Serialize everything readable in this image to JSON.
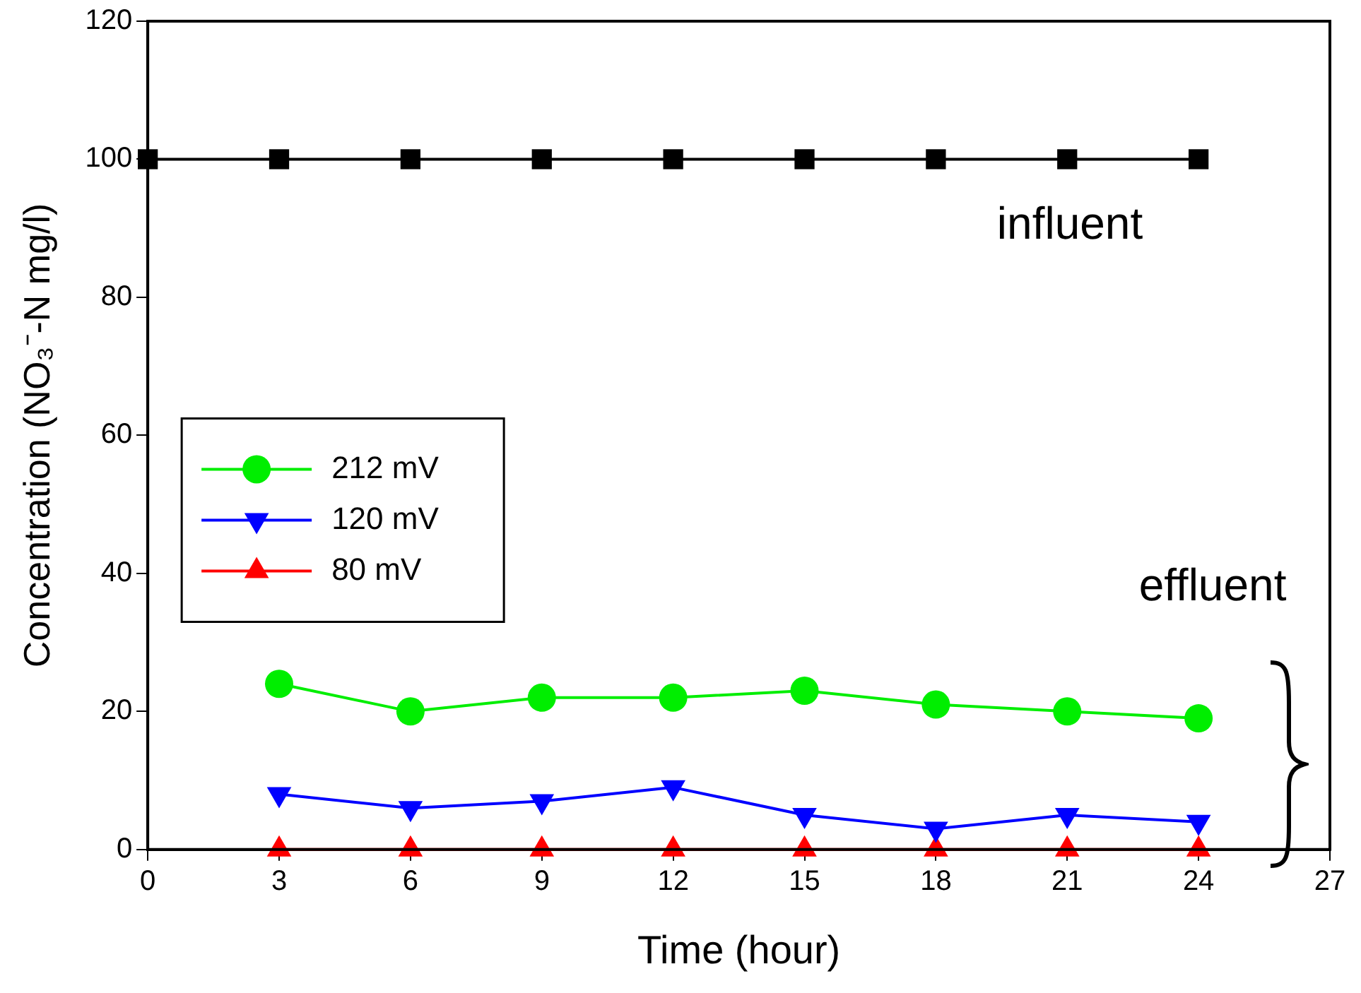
{
  "chart_data": {
    "type": "line",
    "xlabel": "Time (hour)",
    "ylabel": "Concentration (NO₃⁻-N mg/l)",
    "xlim": [
      0,
      27
    ],
    "xticks": [
      0,
      3,
      6,
      9,
      12,
      15,
      18,
      21,
      24,
      27
    ],
    "ylim": [
      0,
      120
    ],
    "yticks": [
      0,
      20,
      40,
      60,
      80,
      100,
      120
    ],
    "grid": false,
    "legend": "left",
    "line_style": "solid",
    "series": [
      {
        "color": "#000000",
        "marker": "square",
        "x": [
          0,
          3,
          6,
          9,
          12,
          15,
          18,
          21,
          24
        ],
        "values": [
          100,
          100,
          100,
          100,
          100,
          100,
          100,
          100,
          100
        ]
      },
      {
        "name": "212 mV",
        "color": "#00ee00",
        "marker": "circle",
        "x": [
          3,
          6,
          9,
          12,
          15,
          18,
          21,
          24
        ],
        "values": [
          24,
          20,
          22,
          22,
          23,
          21,
          20,
          19
        ]
      },
      {
        "name": "120 mV",
        "color": "#0000ff",
        "marker": "triangle_down",
        "x": [
          3,
          6,
          9,
          12,
          15,
          18,
          21,
          24
        ],
        "values": [
          8,
          6,
          7,
          9,
          5,
          3,
          5,
          4
        ]
      },
      {
        "name": "80 mV",
        "color": "#ff0000",
        "marker": "triangle",
        "x": [
          3,
          6,
          9,
          12,
          15,
          18,
          21,
          24
        ],
        "values": [
          0,
          0,
          0,
          0,
          0,
          0,
          0,
          0
        ]
      }
    ],
    "annotations": [
      "influent",
      "effluent"
    ]
  }
}
